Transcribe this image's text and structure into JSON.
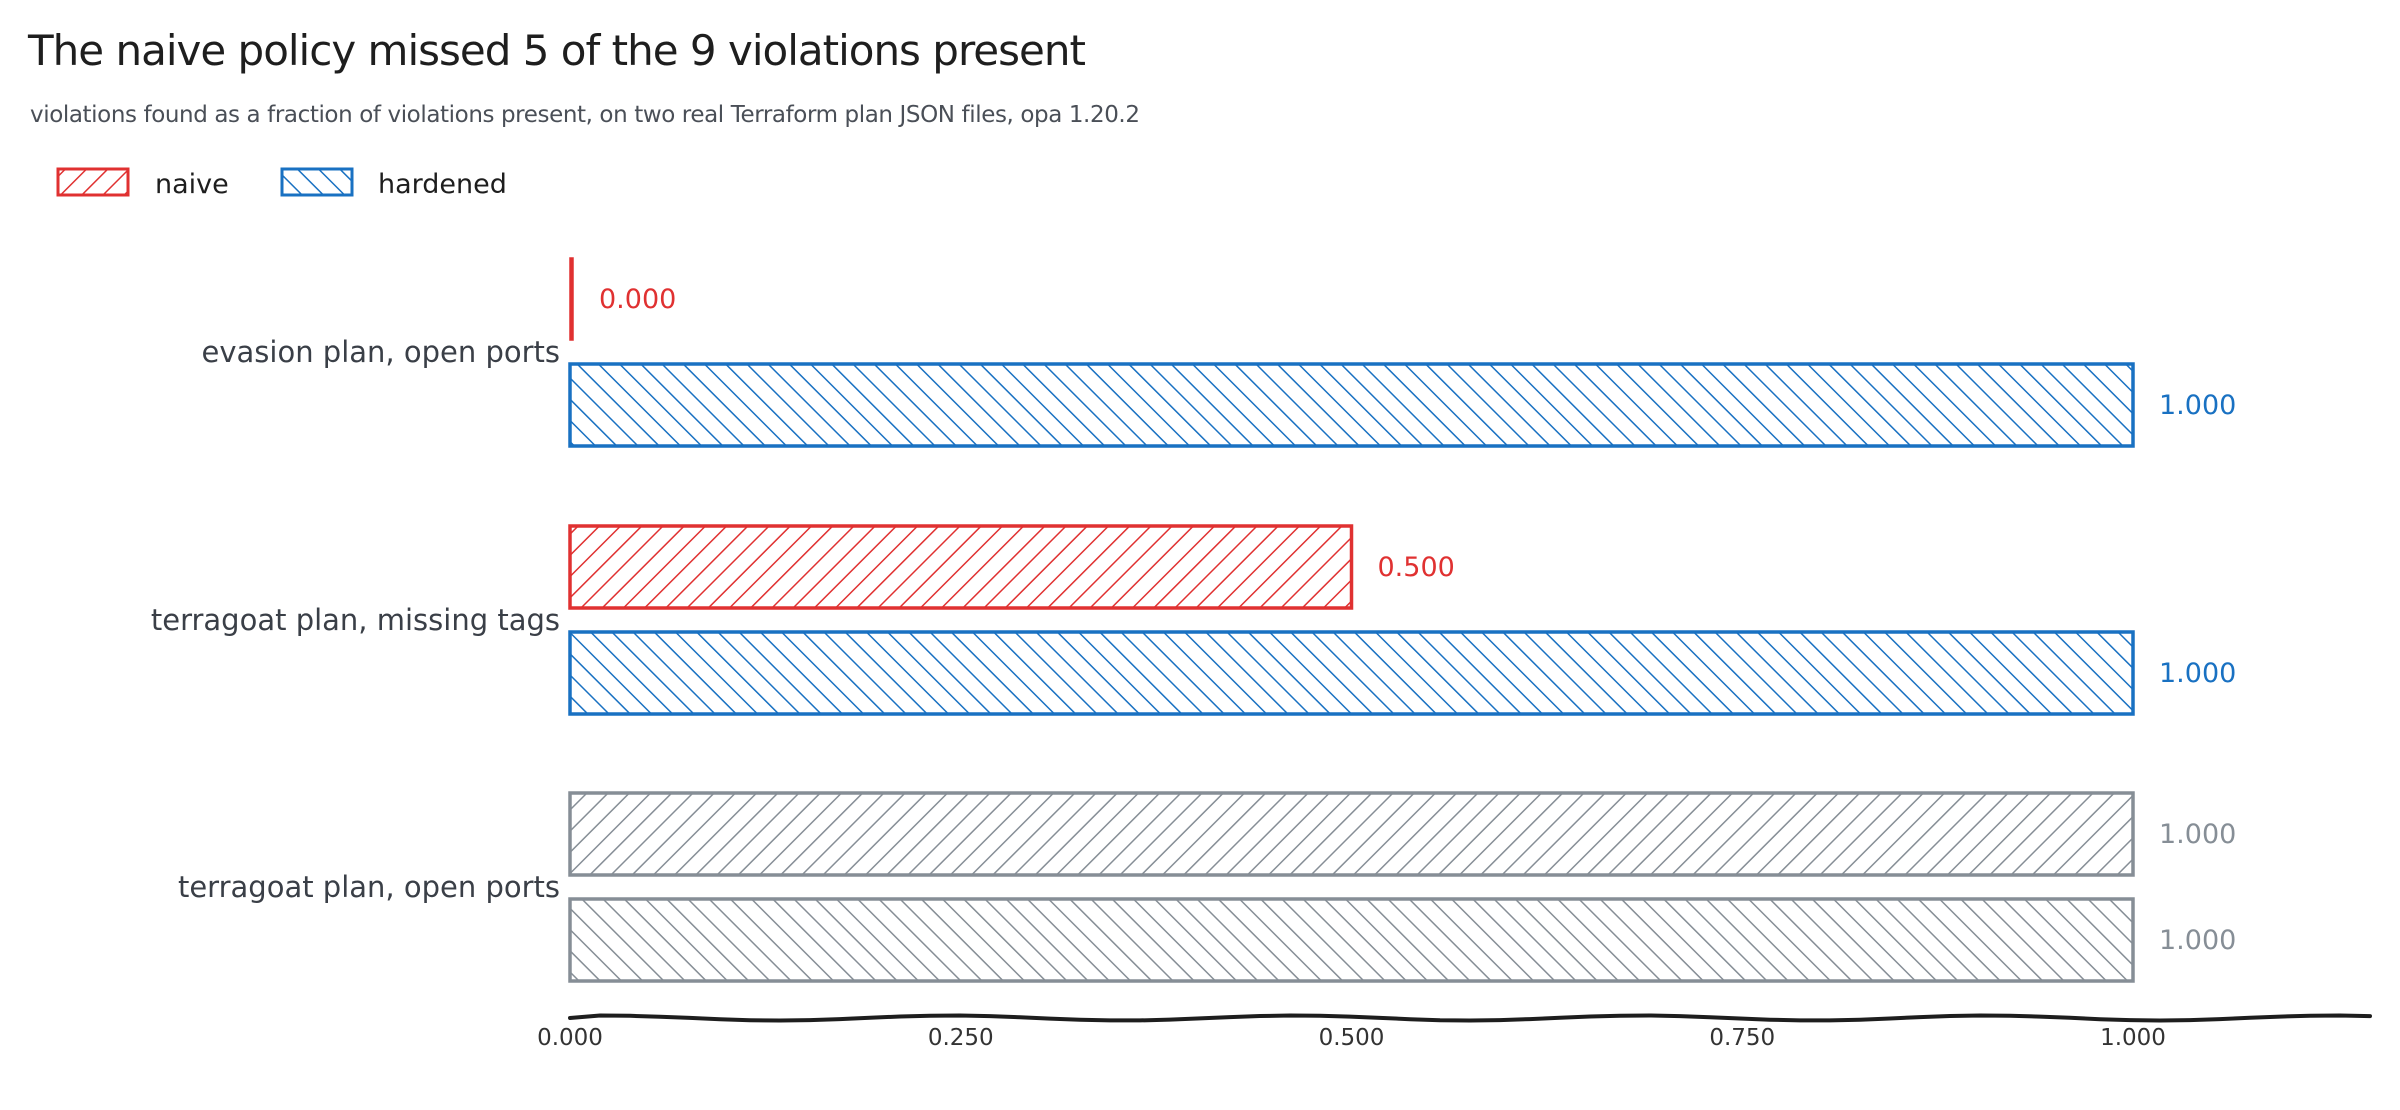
{
  "title": "The naive policy missed 5 of the 9 violations present",
  "subtitle": "violations found as a fraction of violations present, on two real Terraform plan JSON files, opa 1.20.2",
  "colors": {
    "naive": "#e03131",
    "hardened": "#1971c2",
    "muted": "#868e96",
    "axis": "#1e1e1e"
  },
  "chart_data": {
    "type": "bar",
    "orientation": "horizontal",
    "categories": [
      "evasion plan, open ports",
      "terragoat plan, missing tags",
      "terragoat plan, open ports"
    ],
    "series": [
      {
        "name": "naive",
        "values": [
          0.0,
          0.5,
          1.0
        ],
        "value_labels": [
          "0.000",
          "0.500",
          "1.000"
        ]
      },
      {
        "name": "hardened",
        "values": [
          1.0,
          1.0,
          1.0
        ],
        "value_labels": [
          "1.000",
          "1.000",
          "1.000"
        ]
      }
    ],
    "muted_categories": [
      "terragoat plan, open ports"
    ],
    "xlim": [
      0,
      1.16
    ],
    "xticks": [
      0,
      0.25,
      0.5,
      0.75,
      1.0
    ],
    "xtick_labels": [
      "0.000",
      "0.250",
      "0.500",
      "0.750",
      "1.000"
    ],
    "legend_position": "top-left",
    "grid": false
  }
}
